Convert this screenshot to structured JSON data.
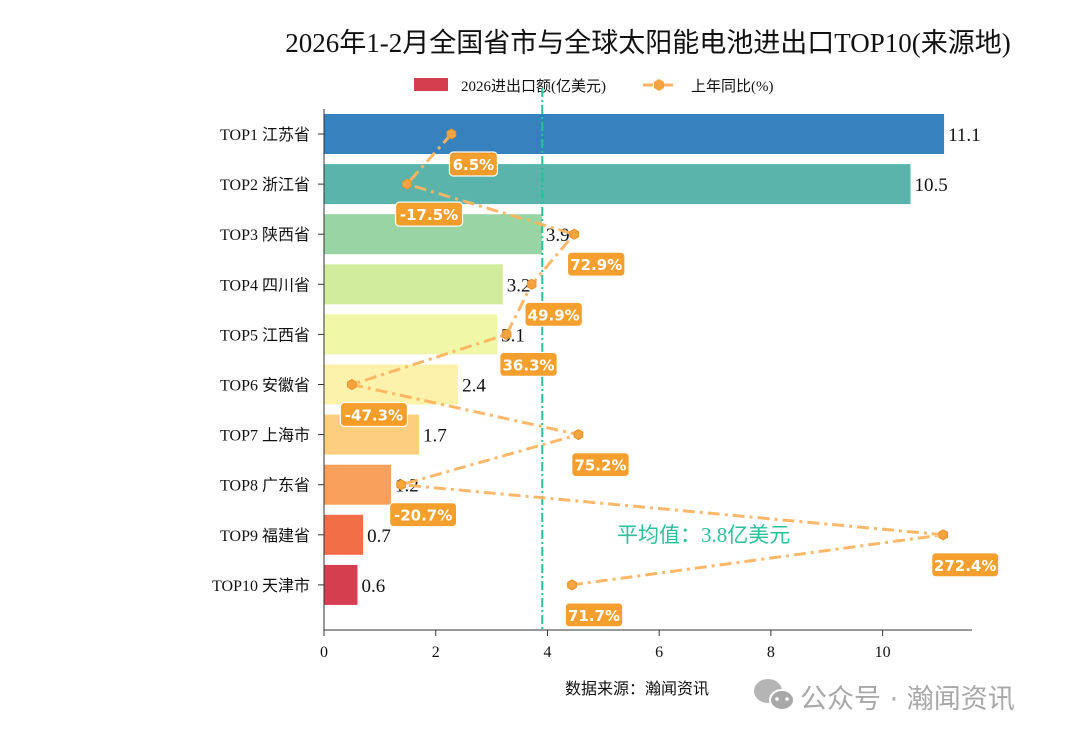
{
  "chart_data": {
    "type": "bar",
    "orientation": "horizontal",
    "title": "2026年1-2月全国省市与全球太阳能电池进出口TOP10(来源地)",
    "categories": [
      "TOP1 江苏省",
      "TOP2 浙江省",
      "TOP3 陕西省",
      "TOP4 四川省",
      "TOP5 江西省",
      "TOP6 安徽省",
      "TOP7 上海市",
      "TOP8 广东省",
      "TOP9 福建省",
      "TOP10 天津市"
    ],
    "series": [
      {
        "name": "2026进出口额(亿美元)",
        "type": "bar",
        "values": [
          11.1,
          10.5,
          3.9,
          3.2,
          3.1,
          2.4,
          1.7,
          1.2,
          0.7,
          0.6
        ],
        "value_labels": [
          "11.1",
          "10.5",
          "3.9",
          "3.2",
          "3.1",
          "2.4",
          "1.7",
          "1.2",
          "0.7",
          "0.6"
        ],
        "colors": [
          "#3682be",
          "#5ab4ac",
          "#99d5a4",
          "#d1ec9c",
          "#f0f8a8",
          "#fdf2aa",
          "#fdce7e",
          "#f9a15c",
          "#f16e46",
          "#d53e4f"
        ]
      },
      {
        "name": "上年同比(%)",
        "type": "line",
        "style": "dash-dot",
        "marker": "hexagon",
        "color": "#fdb462",
        "label_color": "#f59a23",
        "values": [
          6.5,
          -17.5,
          72.9,
          49.9,
          36.3,
          -47.3,
          75.2,
          -20.7,
          272.4,
          71.7
        ],
        "value_labels": [
          "6.5%",
          "-17.5%",
          "72.9%",
          "49.9%",
          "36.3%",
          "-47.3%",
          "75.2%",
          "-20.7%",
          "272.4%",
          "71.7%"
        ]
      }
    ],
    "xlim": [
      0,
      11.6
    ],
    "xticks": [
      0,
      2,
      4,
      6,
      8,
      10
    ],
    "xtick_labels": [
      "0",
      "2",
      "4",
      "6",
      "8",
      "10"
    ],
    "grid": false,
    "legend_placement": "top-center",
    "average": {
      "value": 3.8,
      "label": "平均值：3.8亿美元",
      "color": "#2bbf9c"
    },
    "source_note": "数据来源：瀚闻资讯"
  },
  "watermark": {
    "text": "公众号 · 瀚闻资讯",
    "icon": "wechat-icon"
  }
}
